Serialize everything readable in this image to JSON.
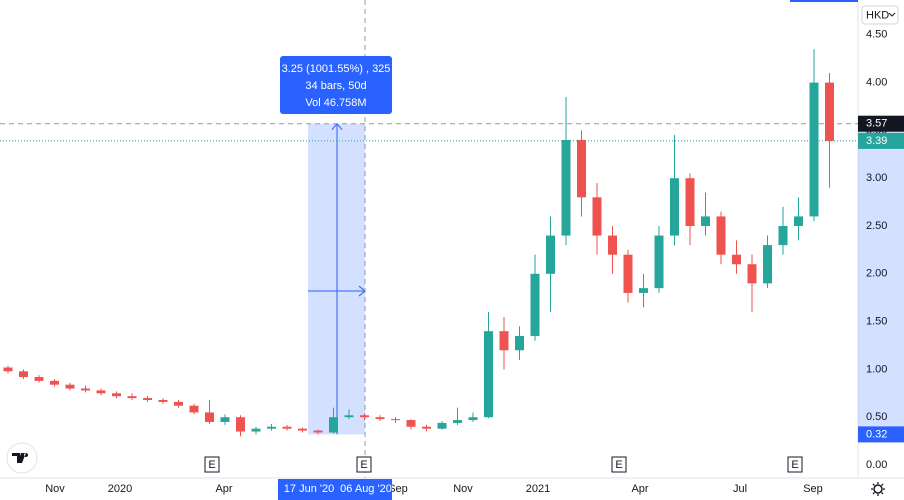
{
  "chart_data": {
    "type": "candlestick",
    "currency": "HKD",
    "open": [
      1.02,
      0.98,
      0.92,
      0.88,
      0.84,
      0.8,
      0.78,
      0.75,
      0.72,
      0.7,
      0.68,
      0.66,
      0.62,
      0.55,
      0.45,
      0.5,
      0.35,
      0.38,
      0.4,
      0.38,
      0.36,
      0.34,
      0.5,
      0.52,
      0.5,
      0.48,
      0.47,
      0.4,
      0.38,
      0.44,
      0.47,
      0.5,
      1.4,
      1.2,
      1.35,
      2.0,
      2.4,
      3.4,
      2.8,
      2.4,
      2.2,
      1.8,
      1.85,
      2.4,
      3.0,
      2.5,
      2.6,
      2.2,
      2.1,
      1.9,
      2.3,
      2.5,
      2.6,
      4.0
    ],
    "high": [
      1.04,
      1.0,
      0.94,
      0.9,
      0.86,
      0.83,
      0.8,
      0.77,
      0.75,
      0.72,
      0.7,
      0.68,
      0.64,
      0.68,
      0.53,
      0.52,
      0.4,
      0.43,
      0.42,
      0.39,
      0.37,
      0.6,
      0.58,
      0.54,
      0.52,
      0.5,
      0.48,
      0.42,
      0.46,
      0.6,
      0.55,
      1.6,
      1.55,
      1.45,
      2.2,
      2.6,
      3.85,
      3.5,
      2.95,
      2.5,
      2.25,
      2.0,
      2.5,
      3.45,
      3.05,
      2.85,
      2.65,
      2.35,
      2.2,
      2.4,
      2.7,
      2.8,
      4.35,
      4.1
    ],
    "low": [
      0.96,
      0.9,
      0.86,
      0.82,
      0.78,
      0.76,
      0.73,
      0.7,
      0.68,
      0.66,
      0.64,
      0.6,
      0.53,
      0.43,
      0.42,
      0.3,
      0.32,
      0.36,
      0.36,
      0.34,
      0.32,
      0.33,
      0.48,
      0.47,
      0.46,
      0.44,
      0.37,
      0.35,
      0.37,
      0.42,
      0.45,
      0.49,
      1.0,
      1.1,
      1.3,
      1.6,
      2.3,
      2.6,
      2.2,
      2.0,
      1.7,
      1.65,
      1.8,
      2.3,
      2.3,
      2.4,
      2.1,
      2.0,
      1.6,
      1.85,
      2.2,
      2.35,
      2.55,
      2.9
    ],
    "close": [
      0.98,
      0.92,
      0.88,
      0.84,
      0.8,
      0.78,
      0.75,
      0.72,
      0.7,
      0.68,
      0.66,
      0.62,
      0.55,
      0.45,
      0.5,
      0.35,
      0.38,
      0.4,
      0.38,
      0.36,
      0.34,
      0.5,
      0.52,
      0.5,
      0.48,
      0.47,
      0.4,
      0.38,
      0.44,
      0.47,
      0.5,
      1.4,
      1.2,
      1.35,
      2.0,
      2.4,
      3.4,
      2.8,
      2.4,
      2.2,
      1.8,
      1.85,
      2.4,
      3.0,
      2.5,
      2.6,
      2.2,
      2.1,
      1.9,
      2.3,
      2.5,
      2.6,
      4.0,
      3.39
    ],
    "colors": {
      "up": "#26a69a",
      "down": "#ef5350"
    },
    "ylim": [
      -0.136,
      4.864
    ],
    "yticks": [
      {
        "value": 0,
        "label": "0.00"
      },
      {
        "value": 0.5,
        "label": "0.50"
      },
      {
        "value": 1,
        "label": "1.00"
      },
      {
        "value": 1.5,
        "label": "1.50"
      },
      {
        "value": 2,
        "label": "2.00"
      },
      {
        "value": 2.5,
        "label": "2.50"
      },
      {
        "value": 3,
        "label": "3.00"
      },
      {
        "value": 3.5,
        "label": "3.50"
      },
      {
        "value": 4,
        "label": "4.00"
      },
      {
        "value": 4.5,
        "label": "4.50"
      }
    ],
    "xlabels": [
      "Nov",
      "2020",
      "Apr",
      "Sep",
      "Nov",
      "2021",
      "Apr",
      "Jul",
      "Sep"
    ],
    "grid": false,
    "crosshair_price": {
      "value": 3.57,
      "label": "3.57"
    },
    "last_price": {
      "value": 3.39,
      "label": "3.39"
    },
    "range_low": {
      "value": 0.32,
      "label": "0.32"
    },
    "measure": {
      "lines": [
        "3.25 (1001.55%) , 325",
        "34 bars, 50d",
        "Vol 46.758M"
      ],
      "start_date": "17 Jun '20",
      "end_date": "06 Aug '20"
    },
    "earnings": [
      "E",
      "E",
      "E",
      "E"
    ]
  }
}
